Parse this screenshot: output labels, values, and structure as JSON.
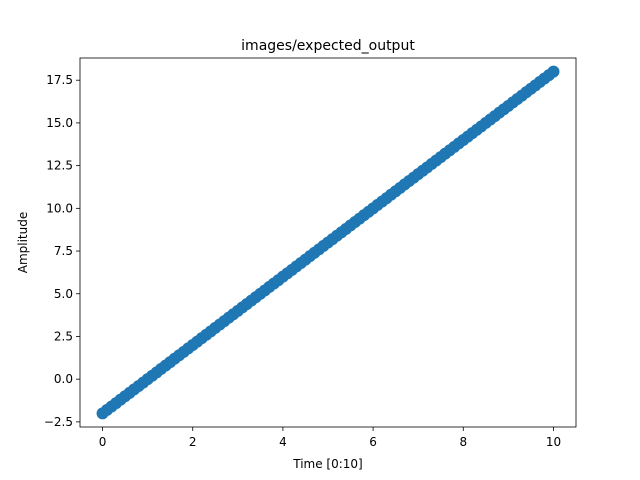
{
  "chart_data": {
    "type": "scatter",
    "title": "images/expected_output",
    "xlabel": "Time [0:10]",
    "ylabel": "Amplitude",
    "xlim": [
      -0.5,
      10.5
    ],
    "ylim": [
      -2.8,
      18.8
    ],
    "xticks": [
      0,
      2,
      4,
      6,
      8,
      10
    ],
    "xtick_labels": [
      "0",
      "2",
      "4",
      "6",
      "8",
      "10"
    ],
    "yticks": [
      -2.5,
      0.0,
      2.5,
      5.0,
      7.5,
      10.0,
      12.5,
      15.0,
      17.5
    ],
    "ytick_labels": [
      "−2.5",
      "0.0",
      "2.5",
      "5.0",
      "7.5",
      "10.0",
      "12.5",
      "15.0",
      "17.5"
    ],
    "grid": false,
    "series": [
      {
        "color": "#1f77b4",
        "line": {
          "slope": 2,
          "intercept": -2
        },
        "x_range": [
          0,
          10
        ],
        "point_count": 101
      }
    ]
  }
}
